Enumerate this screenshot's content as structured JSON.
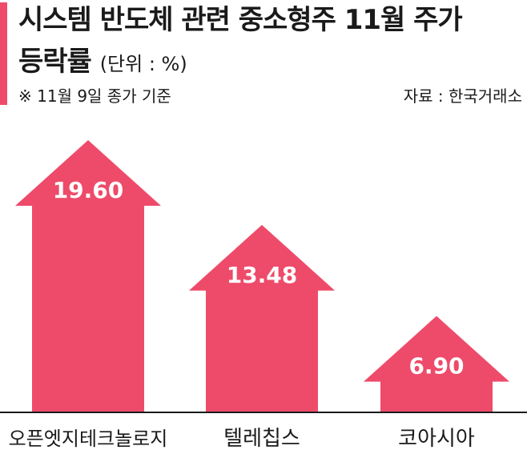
{
  "header": {
    "title_line1": "시스템 반도체 관련 중소형주 11월 주가",
    "title_line2": "등락률",
    "unit": "(단위 : %)",
    "note": "※ 11월 9일 종가 기준",
    "source": "자료 : 한국거래소"
  },
  "colors": {
    "accent": "#ee4b6a",
    "bar": "#ee4b6a",
    "value_text": "#ffffff",
    "axis": "#1a1a1a"
  },
  "chart_data": {
    "type": "bar",
    "categories": [
      "오픈엣지테크놀로지",
      "텔레칩스",
      "코아시아"
    ],
    "values": [
      19.6,
      13.48,
      6.9
    ],
    "value_labels": [
      "19.60",
      "13.48",
      "6.90"
    ],
    "ylim": [
      0,
      22
    ],
    "grid": false,
    "legend": "none"
  }
}
